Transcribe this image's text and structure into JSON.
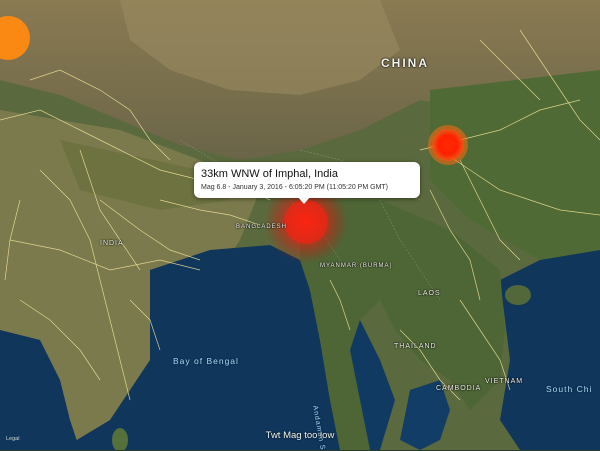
{
  "callout": {
    "title": "33km WNW of Imphal, India",
    "subtitle": "Mag 6.8 - January 3, 2016 - 6:05:20 PM (11:05:20 PM GMT)"
  },
  "status_text": "Twt Mag too low",
  "legal_label": "Legal",
  "quake_markers": [
    {
      "name": "imphal",
      "color": "#ff2a10",
      "magnitude": 6.8
    },
    {
      "name": "chengdu",
      "color": "#ff2200"
    },
    {
      "name": "northwest-edge",
      "color": "#ff8a10"
    }
  ],
  "countries": [
    "CHINA",
    "INDIA",
    "BANGLADESH",
    "MYANMAR (BURMA)",
    "LAOS",
    "THAILAND",
    "VIETNAM",
    "CAMBODIA"
  ],
  "water_bodies": [
    "Bay of Bengal",
    "Andaman S",
    "South Chi"
  ],
  "colors": {
    "water": "#10365c",
    "land": "#6b6440",
    "roads": "#f3e59a",
    "callout_bg": "#ffffff"
  }
}
